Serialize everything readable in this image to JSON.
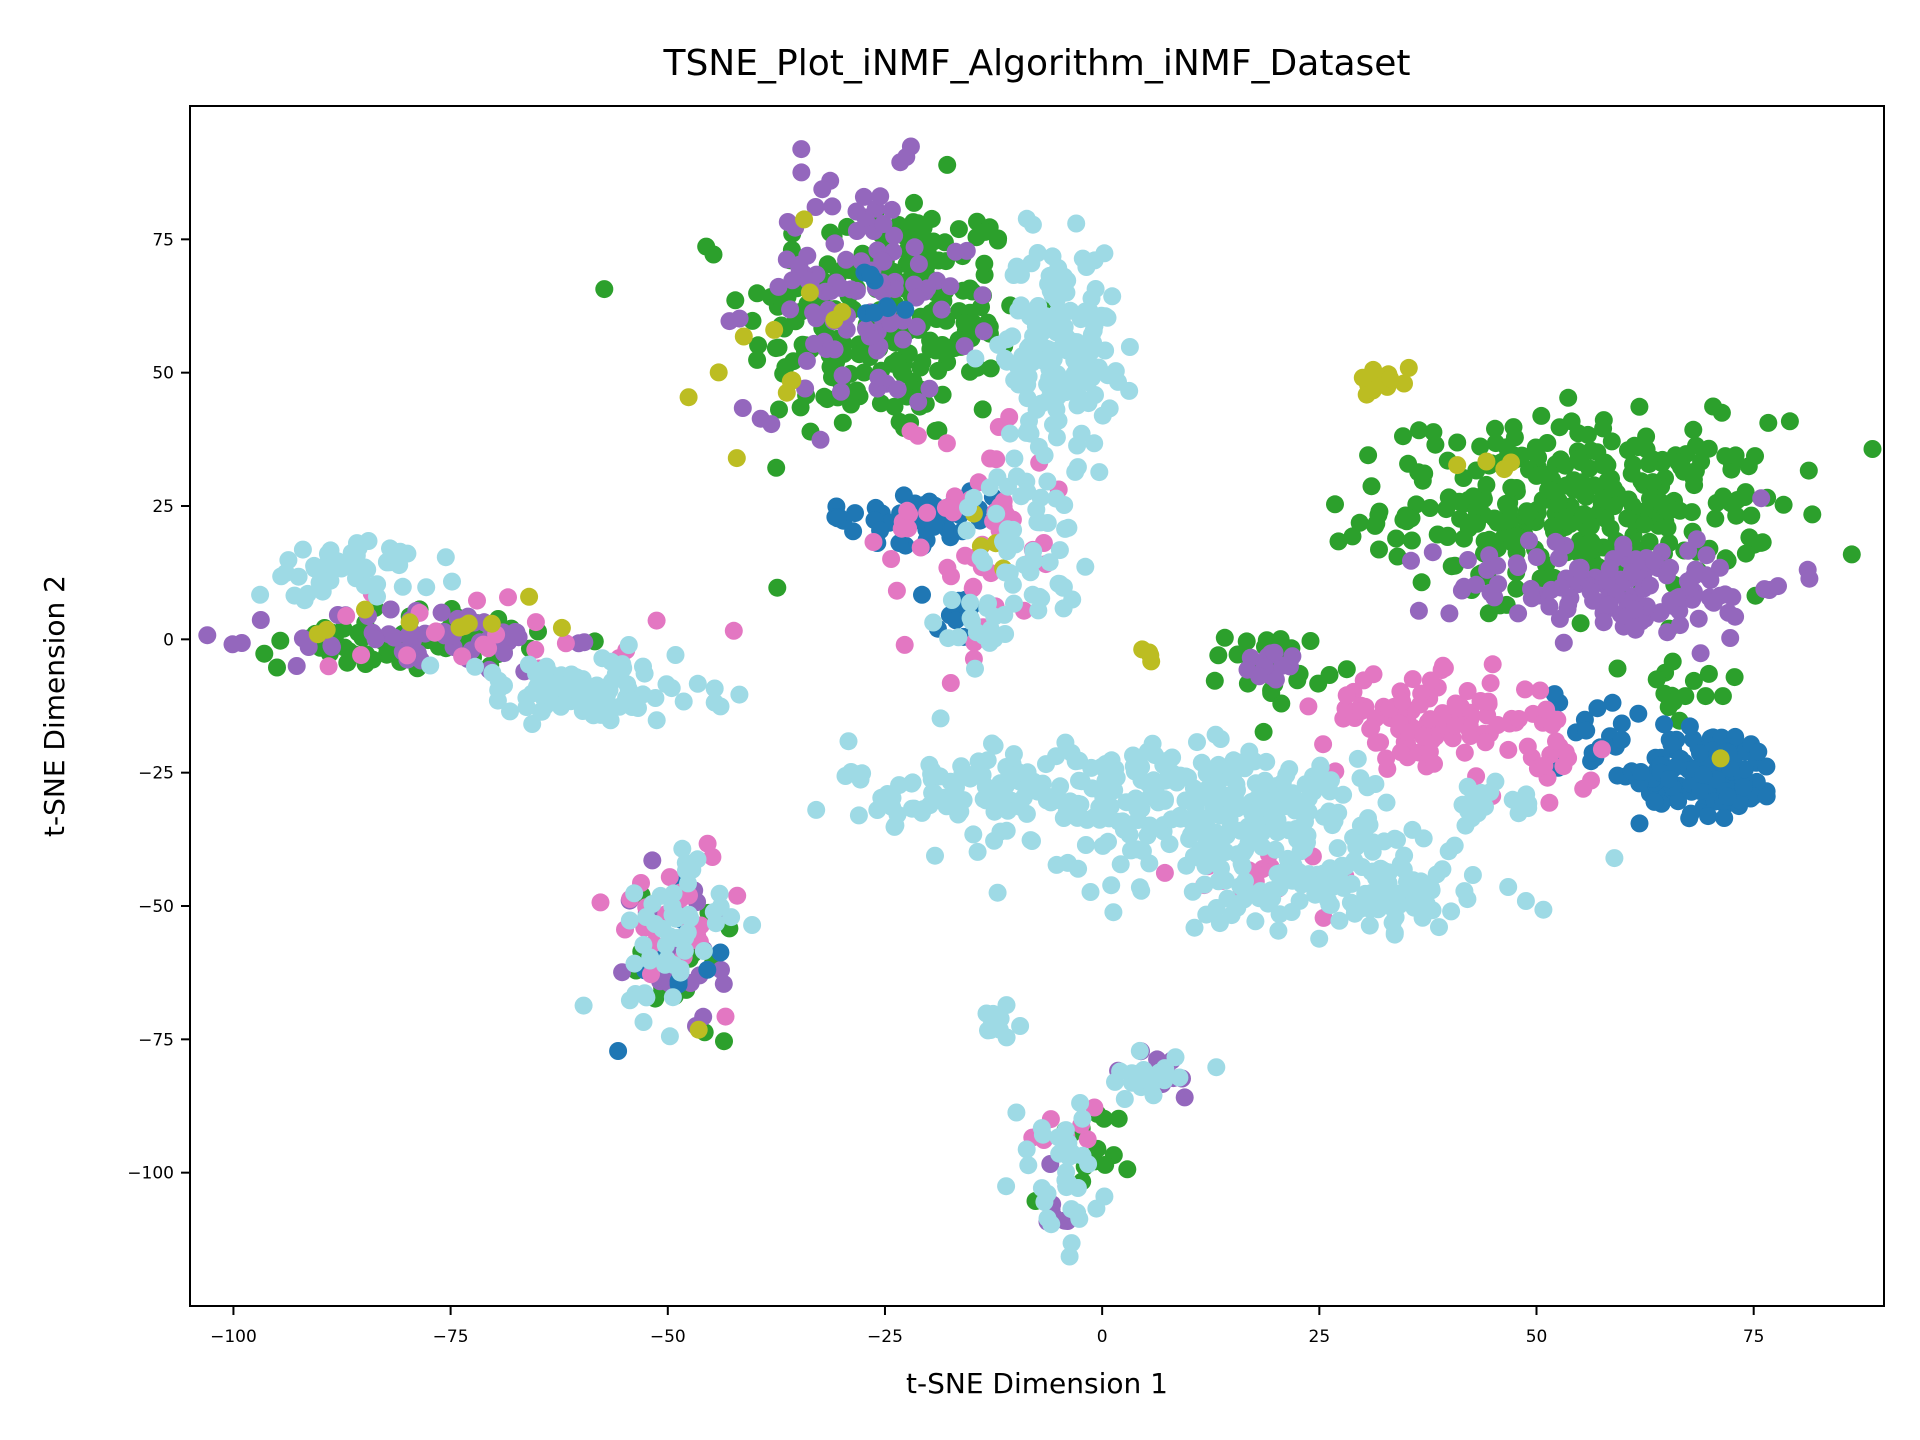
{
  "chart_data": {
    "type": "scatter",
    "title": "TSNE_Plot_iNMF_Algorithm_iNMF_Dataset",
    "xlabel": "t-SNE Dimension 1",
    "ylabel": "t-SNE Dimension 2",
    "xlim": [
      -105,
      90
    ],
    "ylim": [
      -125,
      100
    ],
    "xticks": [
      -100,
      -75,
      -50,
      -25,
      0,
      25,
      50,
      75
    ],
    "xtick_labels": [
      "−100",
      "−75",
      "−50",
      "−25",
      "0",
      "25",
      "50",
      "75"
    ],
    "yticks": [
      -100,
      -75,
      -50,
      -25,
      0,
      25,
      50,
      75
    ],
    "ytick_labels": [
      "−100",
      "−75",
      "−50",
      "−25",
      "0",
      "25",
      "50",
      "75"
    ],
    "grid": false,
    "legend": "none",
    "point_size": 6,
    "series": [
      {
        "color": "#2ca02c",
        "clusters": [
          {
            "cx": -25,
            "cy": 60,
            "sx": 10,
            "sy": 15,
            "n": 230
          },
          {
            "cx": 55,
            "cy": 25,
            "sx": 14,
            "sy": 10,
            "n": 320
          },
          {
            "cx": -80,
            "cy": 0,
            "sx": 9,
            "sy": 3.5,
            "n": 70
          },
          {
            "cx": 20,
            "cy": -5,
            "sx": 3.5,
            "sy": 4,
            "n": 30
          },
          {
            "cx": -47,
            "cy": -60,
            "sx": 4,
            "sy": 10,
            "n": 15
          },
          {
            "cx": -3,
            "cy": -100,
            "sx": 3,
            "sy": 8,
            "n": 15
          },
          {
            "cx": -15,
            "cy": 58,
            "sx": 2,
            "sy": 3,
            "n": 10
          },
          {
            "cx": 67,
            "cy": -10,
            "sx": 4,
            "sy": 5,
            "n": 15
          }
        ]
      },
      {
        "color": "#9467bd",
        "clusters": [
          {
            "cx": -28,
            "cy": 65,
            "sx": 8,
            "sy": 14,
            "n": 110
          },
          {
            "cx": 60,
            "cy": 10,
            "sx": 12,
            "sy": 6,
            "n": 130
          },
          {
            "cx": -78,
            "cy": 0,
            "sx": 10,
            "sy": 4,
            "n": 60
          },
          {
            "cx": -48,
            "cy": -58,
            "sx": 4,
            "sy": 10,
            "n": 25
          },
          {
            "cx": 6,
            "cy": -82,
            "sx": 4,
            "sy": 3,
            "n": 12
          },
          {
            "cx": 20,
            "cy": -5,
            "sx": 2.5,
            "sy": 2.5,
            "n": 12
          },
          {
            "cx": -5,
            "cy": -105,
            "sx": 2,
            "sy": 4,
            "n": 8
          }
        ]
      },
      {
        "color": "#1f77b4",
        "clusters": [
          {
            "cx": 70,
            "cy": -25,
            "sx": 5,
            "sy": 5,
            "n": 120
          },
          {
            "cx": -22,
            "cy": 23,
            "sx": 6,
            "sy": 3,
            "n": 55
          },
          {
            "cx": 57,
            "cy": -18,
            "sx": 3,
            "sy": 6,
            "n": 20
          },
          {
            "cx": -17,
            "cy": 6,
            "sx": 2,
            "sy": 3,
            "n": 10
          },
          {
            "cx": -48,
            "cy": -62,
            "sx": 3,
            "sy": 9,
            "n": 10
          },
          {
            "cx": -25,
            "cy": 65,
            "sx": 3,
            "sy": 4,
            "n": 8
          }
        ]
      },
      {
        "color": "#e377c2",
        "clusters": [
          {
            "cx": 38,
            "cy": -15,
            "sx": 8,
            "sy": 5,
            "n": 110
          },
          {
            "cx": -15,
            "cy": 20,
            "sx": 7,
            "sy": 15,
            "n": 55
          },
          {
            "cx": -50,
            "cy": -50,
            "sx": 4,
            "sy": 9,
            "n": 25
          },
          {
            "cx": 18,
            "cy": -45,
            "sx": 10,
            "sy": 4,
            "n": 18
          },
          {
            "cx": 52,
            "cy": -22,
            "sx": 3,
            "sy": 5,
            "n": 18
          },
          {
            "cx": -70,
            "cy": 2,
            "sx": 12,
            "sy": 6,
            "n": 22
          },
          {
            "cx": -5,
            "cy": -92,
            "sx": 3,
            "sy": 4,
            "n": 8
          }
        ]
      },
      {
        "color": "#bcbd22",
        "clusters": [
          {
            "cx": -38,
            "cy": 50,
            "sx": 8,
            "sy": 15,
            "n": 12
          },
          {
            "cx": 33,
            "cy": 48,
            "sx": 3,
            "sy": 2,
            "n": 12
          },
          {
            "cx": -78,
            "cy": 2,
            "sx": 10,
            "sy": 3,
            "n": 10
          },
          {
            "cx": 45,
            "cy": 32,
            "sx": 3,
            "sy": 4,
            "n": 4
          },
          {
            "cx": 5,
            "cy": -3,
            "sx": 1,
            "sy": 1,
            "n": 4
          },
          {
            "cx": -10,
            "cy": 20,
            "sx": 4,
            "sy": 6,
            "n": 4
          },
          {
            "cx": 70,
            "cy": -21,
            "sx": 1,
            "sy": 1,
            "n": 1
          },
          {
            "cx": -46,
            "cy": -73,
            "sx": 1,
            "sy": 1,
            "n": 1
          }
        ]
      },
      {
        "color": "#9edae5",
        "clusters": [
          {
            "cx": -5,
            "cy": 55,
            "sx": 4,
            "sy": 12,
            "n": 170
          },
          {
            "cx": -9,
            "cy": 18,
            "sx": 4,
            "sy": 9,
            "n": 55
          },
          {
            "cx": -15,
            "cy": 2,
            "sx": 3,
            "sy": 4,
            "n": 15
          },
          {
            "cx": -5,
            "cy": -28,
            "sx": 15,
            "sy": 6,
            "n": 180
          },
          {
            "cx": 18,
            "cy": -35,
            "sx": 14,
            "sy": 9,
            "n": 220
          },
          {
            "cx": 30,
            "cy": -48,
            "sx": 10,
            "sy": 4,
            "n": 90
          },
          {
            "cx": -60,
            "cy": -10,
            "sx": 10,
            "sy": 4,
            "n": 100
          },
          {
            "cx": -85,
            "cy": 14,
            "sx": 5,
            "sy": 3,
            "n": 40
          },
          {
            "cx": -92,
            "cy": 8,
            "sx": 2,
            "sy": 2,
            "n": 8
          },
          {
            "cx": -50,
            "cy": -55,
            "sx": 4,
            "sy": 10,
            "n": 50
          },
          {
            "cx": -12,
            "cy": -72,
            "sx": 2,
            "sy": 2,
            "n": 12
          },
          {
            "cx": 6,
            "cy": -82,
            "sx": 4,
            "sy": 3,
            "n": 22
          },
          {
            "cx": -5,
            "cy": -100,
            "sx": 3,
            "sy": 8,
            "n": 35
          },
          {
            "cx": 44,
            "cy": -31,
            "sx": 3,
            "sy": 2,
            "n": 15
          }
        ]
      }
    ]
  }
}
